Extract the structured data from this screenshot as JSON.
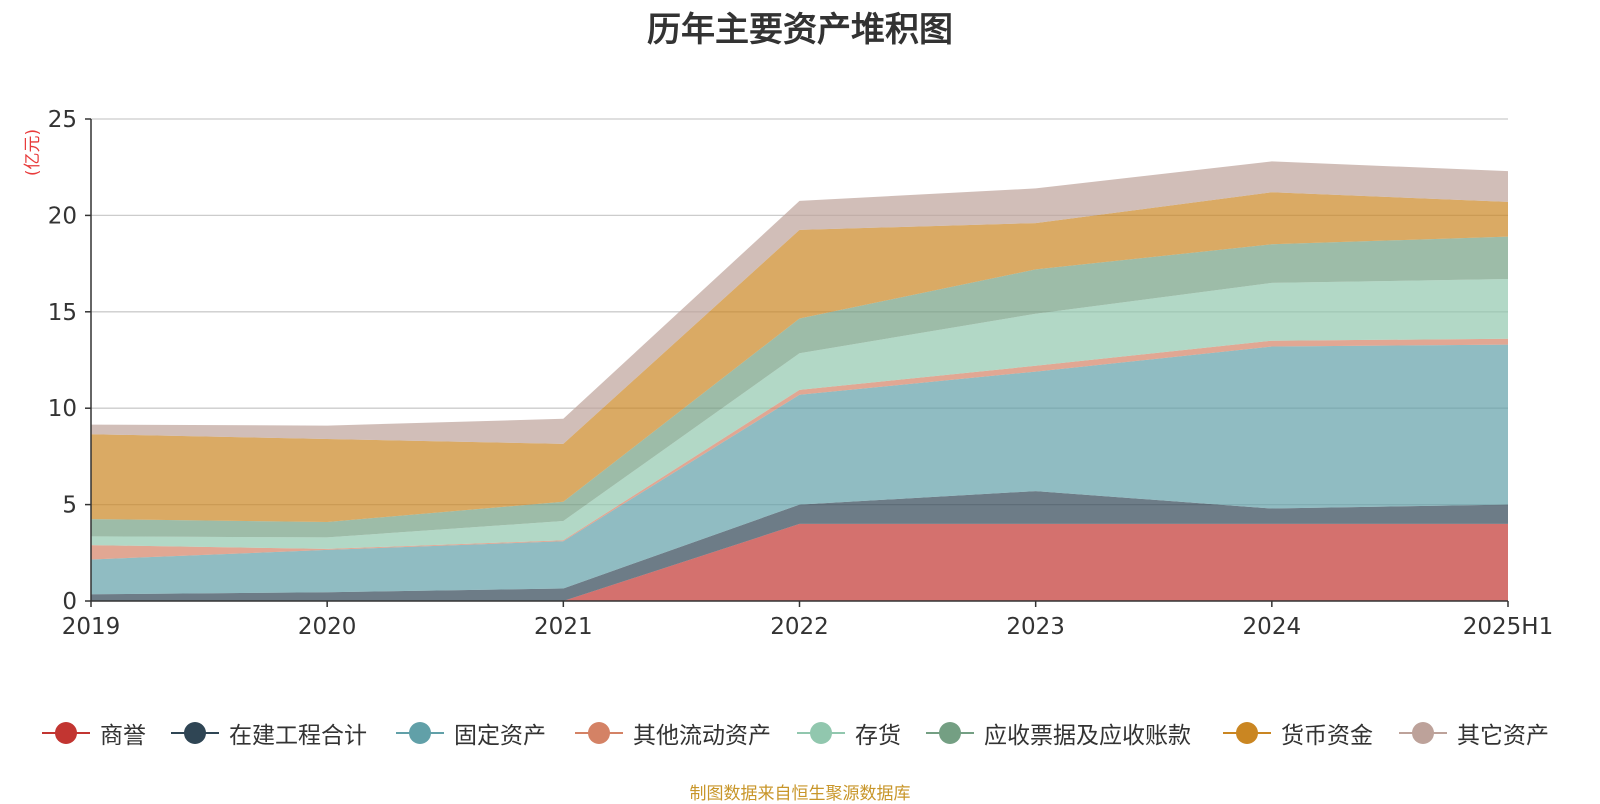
{
  "title": "历年主要资产堆积图",
  "unit_label": "(亿元)",
  "source_note": "制图数据来自恒生聚源数据库",
  "chart_data": {
    "type": "area",
    "stacked": true,
    "title": "历年主要资产堆积图",
    "ylabel": "(亿元)",
    "ylim": [
      0,
      25
    ],
    "yticks": [
      0,
      5,
      10,
      15,
      20,
      25
    ],
    "grid": true,
    "legend_position": "bottom",
    "x": [
      "2019",
      "2020",
      "2021",
      "2022",
      "2023",
      "2024",
      "2025H1"
    ],
    "series": [
      {
        "name": "商誉",
        "color": "#c23531",
        "values": [
          0,
          0,
          0,
          4.0,
          4.0,
          4.0,
          4.0
        ]
      },
      {
        "name": "在建工程合计",
        "color": "#2f4554",
        "values": [
          0.35,
          0.45,
          0.65,
          1.0,
          1.7,
          0.8,
          1.0
        ]
      },
      {
        "name": "固定资产",
        "color": "#61a0a8",
        "values": [
          1.8,
          2.2,
          2.45,
          5.7,
          6.2,
          8.4,
          8.3
        ]
      },
      {
        "name": "其他流动资产",
        "color": "#d48265",
        "values": [
          0.75,
          0.05,
          0.05,
          0.25,
          0.3,
          0.3,
          0.3
        ]
      },
      {
        "name": "存货",
        "color": "#91c7ae",
        "values": [
          0.45,
          0.6,
          1.0,
          1.9,
          2.7,
          3.0,
          3.1
        ]
      },
      {
        "name": "应收票据及应收账款",
        "color": "#749f83",
        "values": [
          0.9,
          0.8,
          1.0,
          1.8,
          2.3,
          2.0,
          2.2
        ]
      },
      {
        "name": "货币资金",
        "color": "#ca8622",
        "values": [
          4.4,
          4.3,
          3.0,
          4.6,
          2.4,
          2.7,
          1.8
        ]
      },
      {
        "name": "其它资产",
        "color": "#bda29a",
        "values": [
          0.5,
          0.7,
          1.3,
          1.5,
          1.8,
          1.6,
          1.6
        ]
      }
    ]
  }
}
